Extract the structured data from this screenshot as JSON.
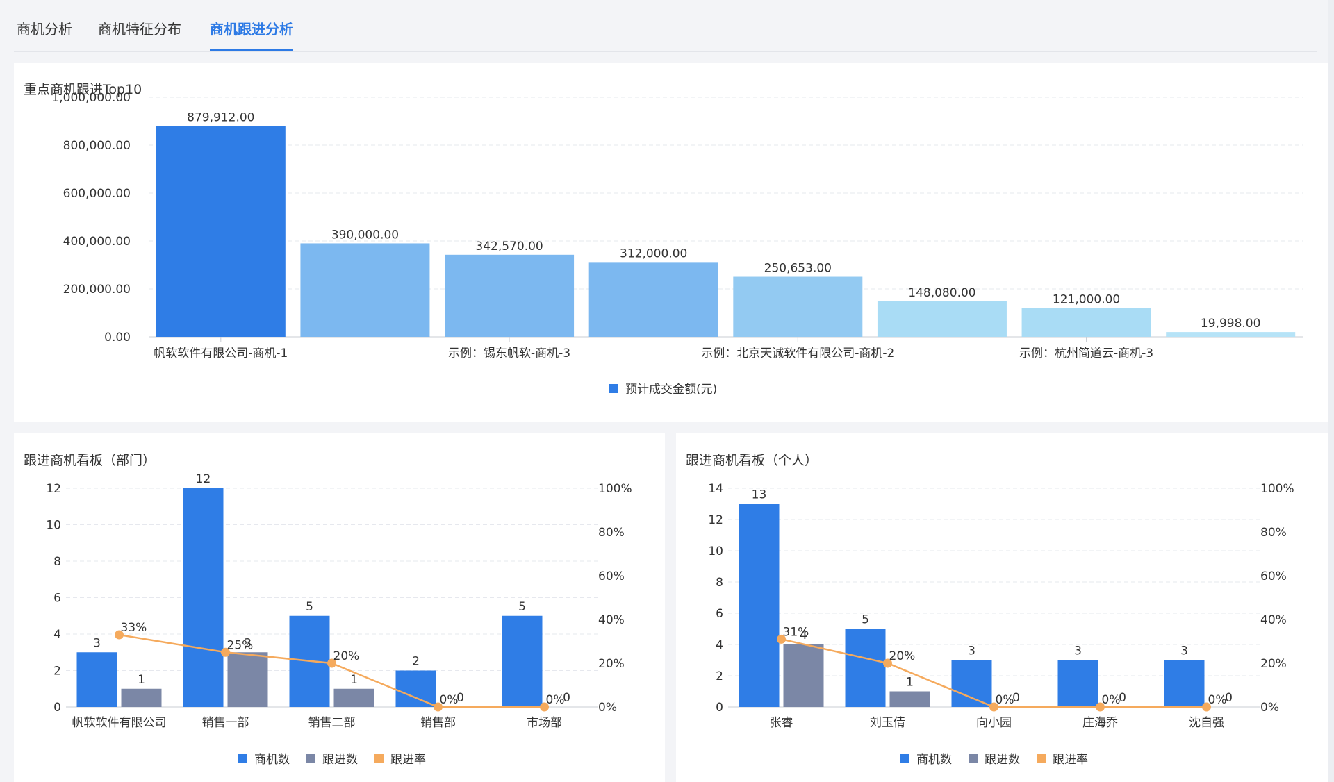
{
  "tabs": [
    {
      "label": "商机分析",
      "active": false
    },
    {
      "label": "商机特征分布",
      "active": false
    },
    {
      "label": "商机跟进分析",
      "active": true
    }
  ],
  "colors": {
    "accent": "#2d7ae5",
    "bar_dark": "#2f7de6",
    "gray": "#7b87a6",
    "orange": "#f5aa5d"
  },
  "panels": {
    "top": {
      "title": "重点商机跟进Top10"
    },
    "dept": {
      "title": "跟进商机看板（部门）"
    },
    "person": {
      "title": "跟进商机看板（个人）"
    }
  },
  "chart_data": [
    {
      "type": "bar",
      "title": "重点商机跟进Top10",
      "yticks": [
        "0.00",
        "200,000.00",
        "400,000.00",
        "600,000.00",
        "800,000.00",
        "1,000,000.00"
      ],
      "ylim": [
        0,
        1000000
      ],
      "xlabels": [
        "帆软软件有限公司-商机-1",
        "示例：锡东帆软-商机-3",
        "示例：北京天诚软件有限公司-商机-2",
        "示例：杭州简道云-商机-3"
      ],
      "values": [
        879912,
        390000,
        342570,
        312000,
        250653,
        148080,
        121000,
        19998
      ],
      "labels": [
        "879,912.00",
        "390,000.00",
        "342,570.00",
        "312,000.00",
        "250,653.00",
        "148,080.00",
        "121,000.00",
        "19,998.00"
      ],
      "bar_colors": [
        "#2f7de6",
        "#7cb8f0",
        "#7cb8f0",
        "#7cb8f0",
        "#93caf2",
        "#a9dcf5",
        "#a9dcf5",
        "#b6e3f7"
      ],
      "legend": [
        {
          "name": "预计成交金额(元)",
          "color": "#2f7de6"
        }
      ],
      "grid": true,
      "legend_position": "bottom"
    },
    {
      "type": "bar",
      "title": "跟进商机看板（部门）",
      "categories": [
        "帆软软件有限公司",
        "销售一部",
        "销售二部",
        "销售部",
        "市场部"
      ],
      "yticks": [
        "0",
        "2",
        "4",
        "6",
        "8",
        "10",
        "12"
      ],
      "ylim": [
        0,
        12
      ],
      "y2ticks": [
        "0%",
        "20%",
        "40%",
        "60%",
        "80%",
        "100%"
      ],
      "y2lim": [
        0,
        100
      ],
      "series": [
        {
          "name": "商机数",
          "kind": "bar",
          "color": "#2f7de6",
          "values": [
            3,
            12,
            5,
            2,
            5
          ]
        },
        {
          "name": "跟进数",
          "kind": "bar",
          "color": "#7b87a6",
          "values": [
            1,
            3,
            1,
            0,
            0
          ]
        },
        {
          "name": "跟进率",
          "kind": "line",
          "color": "#f5aa5d",
          "values": [
            33,
            25,
            20,
            0,
            0
          ],
          "labels": [
            "33%",
            "25%",
            "20%",
            "0%",
            "0%"
          ]
        }
      ],
      "grid": true,
      "legend_position": "bottom"
    },
    {
      "type": "bar",
      "title": "跟进商机看板（个人）",
      "categories": [
        "张睿",
        "刘玉倩",
        "向小园",
        "庄海乔",
        "沈自强"
      ],
      "yticks": [
        "0",
        "2",
        "4",
        "6",
        "8",
        "10",
        "12",
        "14"
      ],
      "ylim": [
        0,
        14
      ],
      "y2ticks": [
        "0%",
        "20%",
        "40%",
        "60%",
        "80%",
        "100%"
      ],
      "y2lim": [
        0,
        100
      ],
      "series": [
        {
          "name": "商机数",
          "kind": "bar",
          "color": "#2f7de6",
          "values": [
            13,
            5,
            3,
            3,
            3
          ]
        },
        {
          "name": "跟进数",
          "kind": "bar",
          "color": "#7b87a6",
          "values": [
            4,
            1,
            0,
            0,
            0
          ]
        },
        {
          "name": "跟进率",
          "kind": "line",
          "color": "#f5aa5d",
          "values": [
            31,
            20,
            0,
            0,
            0
          ],
          "labels": [
            "31%",
            "20%",
            "0%",
            "0%",
            "0%"
          ]
        }
      ],
      "grid": true,
      "legend_position": "bottom"
    }
  ]
}
